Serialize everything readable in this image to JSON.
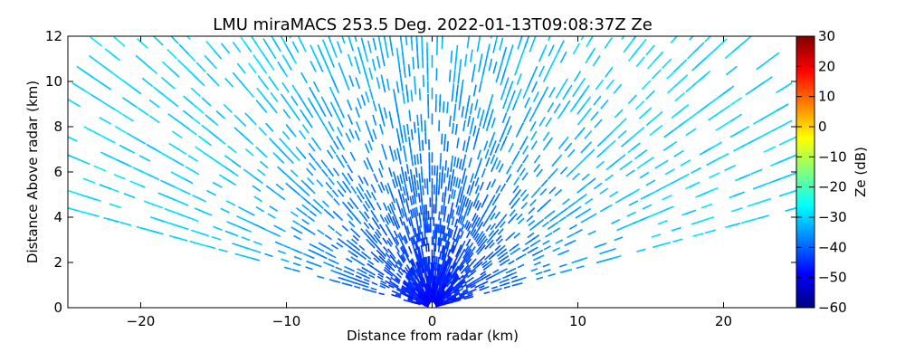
{
  "chart_data": {
    "type": "heatmap",
    "title": "LMU miraMACS 253.5 Deg. 2022-01-13T09:08:37Z  Ze",
    "xlabel": "Distance from radar (km)",
    "ylabel": "Distance Above radar  (km)",
    "xlim": [
      -25,
      25
    ],
    "ylim": [
      0,
      12
    ],
    "x_ticks": [
      -20,
      -10,
      0,
      10,
      20
    ],
    "x_tick_labels": [
      "−20",
      "−10",
      "0",
      "10",
      "20"
    ],
    "y_ticks": [
      0,
      2,
      4,
      6,
      8,
      10,
      12
    ],
    "y_tick_labels": [
      "0",
      "2",
      "4",
      "6",
      "8",
      "10",
      "12"
    ],
    "grid": false,
    "colorbar": {
      "label": "Ze (dB)",
      "colormap": "jet",
      "range": [
        -60,
        30
      ],
      "ticks": [
        30,
        20,
        10,
        0,
        -10,
        -20,
        -30,
        -40,
        -50,
        -60
      ],
      "tick_labels": [
        "30",
        "20",
        "10",
        "0",
        "−10",
        "−20",
        "−30",
        "−40",
        "−50",
        "−60"
      ],
      "colors": [
        "#00007f",
        "#0000ff",
        "#007fff",
        "#00ffff",
        "#7fff7f",
        "#ffff00",
        "#ff7f00",
        "#ff0000",
        "#7f0000"
      ]
    },
    "scan": {
      "description_values": {
        "elevation_min_deg": 10,
        "elevation_max_deg": 170,
        "max_range_km": 26,
        "typical_ze_near_radar_db": -50,
        "typical_ze_mid_db": -40,
        "typical_ze_far_db": -30
      }
    }
  }
}
